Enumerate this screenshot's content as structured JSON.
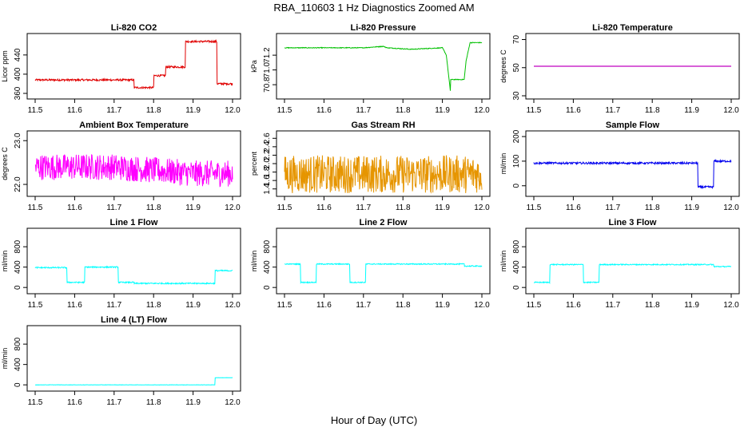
{
  "figure": {
    "title": "RBA_110603  1 Hz Diagnostics Zoomed AM",
    "xlabel": "Hour of Day (UTC)"
  },
  "chart_data": [
    {
      "type": "line",
      "title": "Li-820 CO2",
      "ylabel": "Licor ppm",
      "color": "#e00000",
      "xlim": [
        11.5,
        12.0
      ],
      "ylim": [
        355,
        478
      ],
      "xticks": [
        "11.5",
        "11.6",
        "11.7",
        "11.8",
        "11.9",
        "12.0"
      ],
      "yticks": [
        "360",
        "400",
        "440"
      ],
      "noise": 2,
      "series": [
        {
          "x": [
            11.5,
            11.75,
            11.75,
            11.8,
            11.8,
            11.83,
            11.83,
            11.88,
            11.88,
            11.96,
            11.96,
            12.0
          ],
          "y": [
            388,
            388,
            372,
            372,
            397,
            397,
            415,
            415,
            468,
            468,
            380,
            380
          ]
        }
      ]
    },
    {
      "type": "line",
      "title": "Li-820 Pressure",
      "ylabel": "kPa",
      "color": "#00c000",
      "xlim": [
        11.5,
        12.0
      ],
      "ylim": [
        70.65,
        71.45
      ],
      "xticks": [
        "11.5",
        "11.6",
        "11.7",
        "11.8",
        "11.9",
        "12.0"
      ],
      "yticks": [
        "70.8",
        "71.0",
        "71.2"
      ],
      "noise": 0.005,
      "series": [
        {
          "x": [
            11.5,
            11.6,
            11.7,
            11.75,
            11.76,
            11.82,
            11.9,
            11.91,
            11.92,
            11.92,
            11.93,
            11.955,
            11.96,
            11.97,
            12.0
          ],
          "y": [
            71.3,
            71.3,
            71.3,
            71.32,
            71.3,
            71.28,
            71.3,
            71.2,
            70.72,
            70.87,
            70.87,
            70.87,
            71.12,
            71.37,
            71.37
          ]
        }
      ]
    },
    {
      "type": "line",
      "title": "Li-820 Temperature",
      "ylabel": "degrees C",
      "color": "#c000c0",
      "xlim": [
        11.5,
        12.0
      ],
      "ylim": [
        30,
        72
      ],
      "xticks": [
        "11.5",
        "11.6",
        "11.7",
        "11.8",
        "11.9",
        "12.0"
      ],
      "yticks": [
        "30",
        "50",
        "70"
      ],
      "noise": 0,
      "series": [
        {
          "x": [
            11.5,
            12.0
          ],
          "y": [
            51,
            51
          ]
        }
      ]
    },
    {
      "type": "line",
      "title": "Ambient Box Temperature",
      "ylabel": "degrees C",
      "color": "#ff00ff",
      "xlim": [
        11.5,
        12.0
      ],
      "ylim": [
        21.8,
        23.15
      ],
      "xticks": [
        "11.5",
        "11.6",
        "11.7",
        "11.8",
        "11.9",
        "12.0"
      ],
      "yticks": [
        "22.0",
        "23.0"
      ],
      "noise": 0.3,
      "series": [
        {
          "x": [
            11.5,
            11.7,
            11.9,
            12.0
          ],
          "y": [
            22.4,
            22.4,
            22.25,
            22.25
          ]
        }
      ]
    },
    {
      "type": "line",
      "title": "Gas Stream RH",
      "ylabel": "percent",
      "color": "#e69500",
      "xlim": [
        11.5,
        12.0
      ],
      "ylim": [
        1.3,
        2.7
      ],
      "xticks": [
        "11.5",
        "11.6",
        "11.7",
        "11.8",
        "11.9",
        "12.0"
      ],
      "yticks": [
        "1.4",
        "1.6",
        "1.8",
        "2.0",
        "2.2",
        "2.4",
        "2.6"
      ],
      "noise": 0.45,
      "series": [
        {
          "x": [
            11.5,
            12.0
          ],
          "y": [
            1.75,
            1.75
          ]
        }
      ]
    },
    {
      "type": "line",
      "title": "Sample Flow",
      "ylabel": "ml/min",
      "color": "#0000ee",
      "xlim": [
        11.5,
        12.0
      ],
      "ylim": [
        -30,
        210
      ],
      "xticks": [
        "11.5",
        "11.6",
        "11.7",
        "11.8",
        "11.9",
        "12.0"
      ],
      "yticks": [
        "0",
        "100",
        "200"
      ],
      "noise": 4,
      "series": [
        {
          "x": [
            11.5,
            11.915,
            11.915,
            11.955,
            11.955,
            12.0
          ],
          "y": [
            92,
            92,
            -5,
            -5,
            100,
            100
          ]
        }
      ]
    },
    {
      "type": "line",
      "title": "Line 1 Flow",
      "ylabel": "ml/min",
      "color": "#00ffff",
      "xlim": [
        11.5,
        12.0
      ],
      "ylim": [
        -60,
        1100
      ],
      "xticks": [
        "11.5",
        "11.6",
        "11.7",
        "11.8",
        "11.9",
        "12.0"
      ],
      "yticks": [
        "0",
        "400",
        "800"
      ],
      "noise": 12,
      "series": [
        {
          "x": [
            11.5,
            11.58,
            11.58,
            11.625,
            11.625,
            11.71,
            11.71,
            11.75,
            11.75,
            11.955,
            11.955,
            12.0
          ],
          "y": [
            390,
            390,
            100,
            100,
            400,
            400,
            100,
            100,
            80,
            80,
            330,
            330
          ]
        }
      ]
    },
    {
      "type": "line",
      "title": "Line 2 Flow",
      "ylabel": "ml/min",
      "color": "#00ffff",
      "xlim": [
        11.5,
        12.0
      ],
      "ylim": [
        -60,
        1100
      ],
      "xticks": [
        "11.5",
        "11.6",
        "11.7",
        "11.8",
        "11.9",
        "12.0"
      ],
      "yticks": [
        "0",
        "400",
        "800"
      ],
      "noise": 10,
      "series": [
        {
          "x": [
            11.5,
            11.54,
            11.54,
            11.58,
            11.58,
            11.665,
            11.665,
            11.705,
            11.705,
            11.955,
            11.955,
            12.0
          ],
          "y": [
            460,
            460,
            100,
            100,
            460,
            460,
            100,
            100,
            460,
            460,
            420,
            420
          ]
        }
      ]
    },
    {
      "type": "line",
      "title": "Line 3 Flow",
      "ylabel": "ml/min",
      "color": "#00ffff",
      "xlim": [
        11.5,
        12.0
      ],
      "ylim": [
        -60,
        1100
      ],
      "xticks": [
        "11.5",
        "11.6",
        "11.7",
        "11.8",
        "11.9",
        "12.0"
      ],
      "yticks": [
        "0",
        "400",
        "800"
      ],
      "noise": 10,
      "series": [
        {
          "x": [
            11.5,
            11.54,
            11.54,
            11.625,
            11.625,
            11.665,
            11.665,
            11.955,
            11.955,
            12.0
          ],
          "y": [
            100,
            100,
            450,
            450,
            100,
            100,
            450,
            450,
            410,
            410
          ]
        }
      ]
    },
    {
      "type": "line",
      "title": "Line 4 (LT) Flow",
      "ylabel": "ml/min",
      "color": "#00ffff",
      "xlim": [
        11.5,
        12.0
      ],
      "ylim": [
        -60,
        1100
      ],
      "xticks": [
        "11.5",
        "11.6",
        "11.7",
        "11.8",
        "11.9",
        "12.0"
      ],
      "yticks": [
        "0",
        "400",
        "800"
      ],
      "noise": 3,
      "series": [
        {
          "x": [
            11.5,
            11.955,
            11.955,
            12.0
          ],
          "y": [
            0,
            0,
            140,
            140
          ]
        }
      ]
    }
  ]
}
